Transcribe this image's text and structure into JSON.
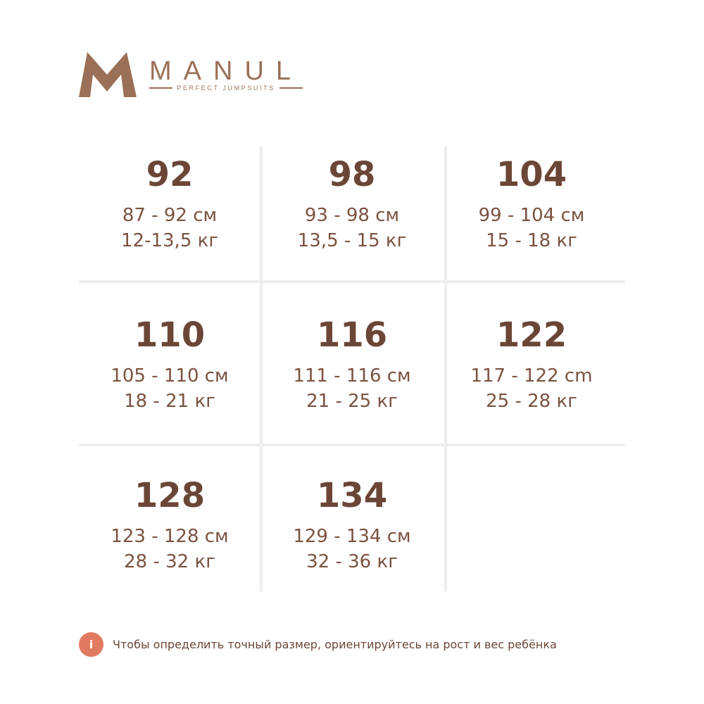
{
  "brand": {
    "name": "MANUL",
    "tagline": "PERFECT JUMPSUITS",
    "color": "#9a7058"
  },
  "sizes": [
    {
      "size": "92",
      "height": "87 - 92 см",
      "weight": "12-13,5 кг"
    },
    {
      "size": "98",
      "height": "93 - 98 см",
      "weight": "13,5 - 15 кг"
    },
    {
      "size": "104",
      "height": "99 - 104 см",
      "weight": "15 - 18 кг"
    },
    {
      "size": "110",
      "height": "105 - 110 см",
      "weight": "18 - 21 кг"
    },
    {
      "size": "116",
      "height": "111 - 116 см",
      "weight": "21 - 25 кг"
    },
    {
      "size": "122",
      "height": "117 - 122 cm",
      "weight": "25 - 28 кг"
    },
    {
      "size": "128",
      "height": "123 - 128 см",
      "weight": "28 - 32 кг"
    },
    {
      "size": "134",
      "height": "129 - 134 см",
      "weight": "32 - 36 кг"
    }
  ],
  "note": {
    "icon": "info-icon",
    "icon_label": "i",
    "text": "Чтобы определить точный размер, ориентируйтесь на рост и вес ребёнка",
    "icon_color": "#e07a60"
  }
}
